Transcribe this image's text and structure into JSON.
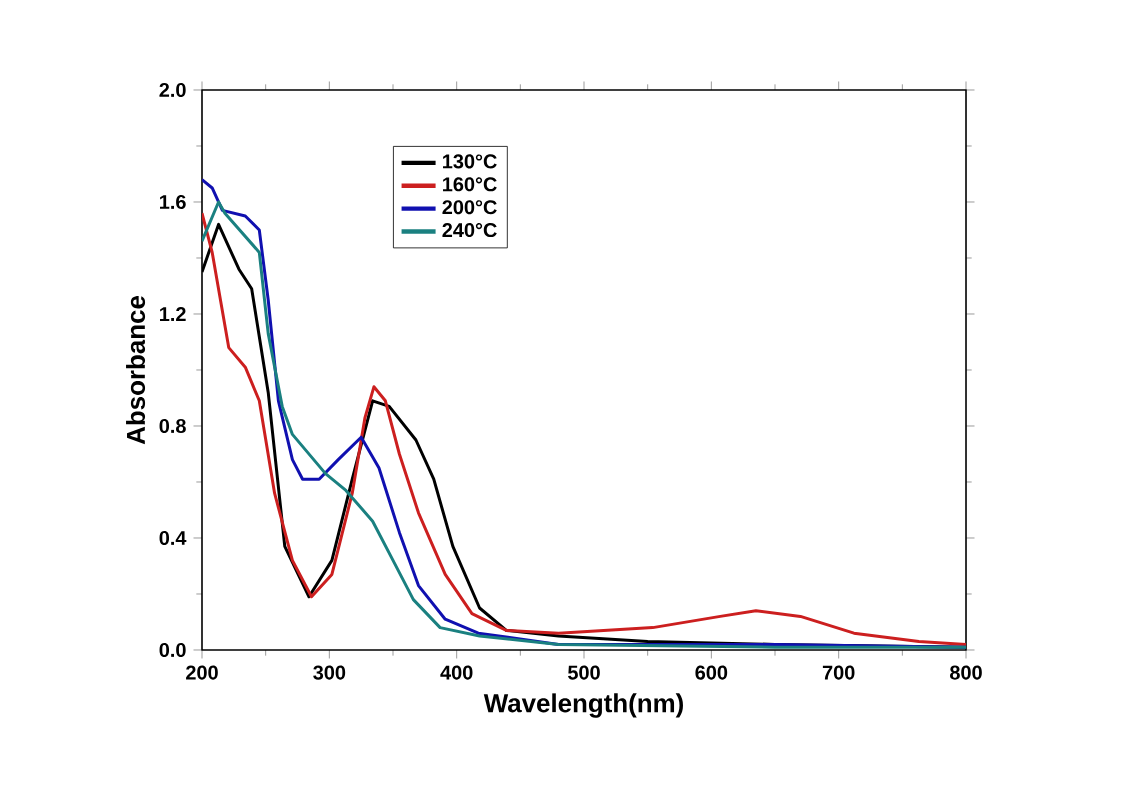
{
  "chart_data": {
    "type": "line",
    "xlabel": "Wavelength(nm)",
    "ylabel": "Absorbance",
    "xlim": [
      200,
      800
    ],
    "ylim": [
      0,
      2.0
    ],
    "xticks": [
      200,
      300,
      400,
      500,
      600,
      700,
      800
    ],
    "yticks": [
      {
        "value": 0,
        "label": "0.0"
      },
      0.4,
      0.8,
      1.2,
      1.6,
      {
        "value": 2,
        "label": "2.0"
      }
    ],
    "legend": "top",
    "grid": false,
    "marker": "none",
    "line_style": "solid",
    "series": [
      {
        "name": "130°C",
        "color": "#000000",
        "x": [
          200,
          213,
          229,
          239,
          252,
          265,
          284,
          302,
          318,
          334,
          347,
          368,
          382,
          397,
          418,
          439,
          480,
          550,
          650,
          800
        ],
        "values": [
          1.35,
          1.52,
          1.36,
          1.29,
          0.92,
          0.37,
          0.19,
          0.32,
          0.61,
          0.89,
          0.87,
          0.75,
          0.61,
          0.37,
          0.15,
          0.07,
          0.05,
          0.03,
          0.02,
          0.01
        ]
      },
      {
        "name": "160°C",
        "color": "#cc1f1f",
        "x": [
          200,
          208,
          221,
          234,
          245,
          257,
          271,
          286,
          302,
          318,
          328,
          335,
          344,
          355,
          370,
          391,
          412,
          439,
          480,
          554,
          607,
          635,
          670,
          712,
          763,
          800
        ],
        "values": [
          1.56,
          1.42,
          1.08,
          1.01,
          0.89,
          0.56,
          0.32,
          0.19,
          0.27,
          0.56,
          0.83,
          0.94,
          0.89,
          0.7,
          0.49,
          0.27,
          0.13,
          0.07,
          0.06,
          0.08,
          0.12,
          0.14,
          0.12,
          0.06,
          0.03,
          0.02
        ]
      },
      {
        "name": "200°C",
        "color": "#1010b0",
        "x": [
          200,
          208,
          216,
          234,
          245,
          252,
          260,
          271,
          279,
          292,
          307,
          325,
          339,
          355,
          370,
          391,
          417,
          480,
          650,
          800
        ],
        "values": [
          1.68,
          1.65,
          1.57,
          1.55,
          1.5,
          1.25,
          0.89,
          0.68,
          0.61,
          0.61,
          0.68,
          0.76,
          0.65,
          0.42,
          0.23,
          0.11,
          0.06,
          0.02,
          0.02,
          0.01
        ]
      },
      {
        "name": "240°C",
        "color": "#1a8080",
        "x": [
          200,
          213,
          218,
          245,
          252,
          263,
          271,
          297,
          313,
          334,
          350,
          366,
          387,
          418,
          480,
          650,
          800
        ],
        "values": [
          1.46,
          1.6,
          1.56,
          1.42,
          1.13,
          0.87,
          0.77,
          0.63,
          0.57,
          0.46,
          0.32,
          0.18,
          0.08,
          0.05,
          0.02,
          0.01,
          0.01
        ]
      }
    ]
  }
}
